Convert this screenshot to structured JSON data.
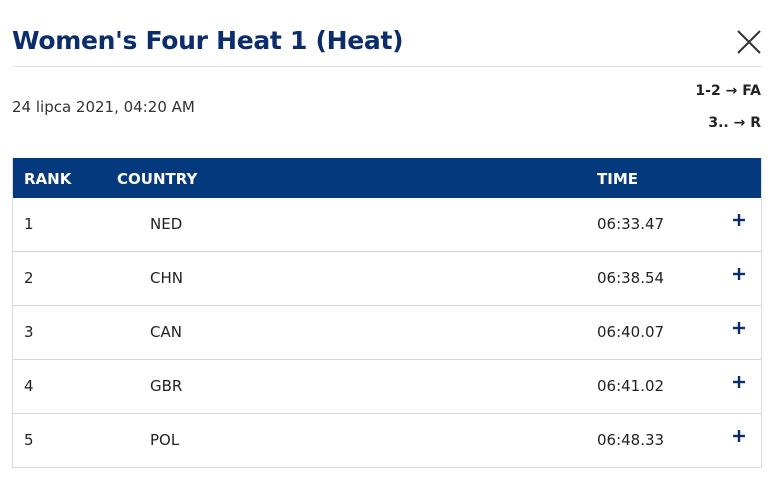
{
  "header": {
    "title": "Women's Four Heat 1 (Heat)",
    "date": "24 lipca 2021, 04:20 AM",
    "rules": [
      "1-2 → FA",
      "3.. → R"
    ]
  },
  "table": {
    "columns": [
      "RANK",
      "COUNTRY",
      "TIME"
    ],
    "rows": [
      [
        1,
        "NED",
        "06:33.47"
      ],
      [
        2,
        "CHN",
        "06:38.54"
      ],
      [
        3,
        "CAN",
        "06:40.07"
      ],
      [
        4,
        "GBR",
        "06:41.02"
      ],
      [
        5,
        "POL",
        "06:48.33"
      ]
    ]
  }
}
